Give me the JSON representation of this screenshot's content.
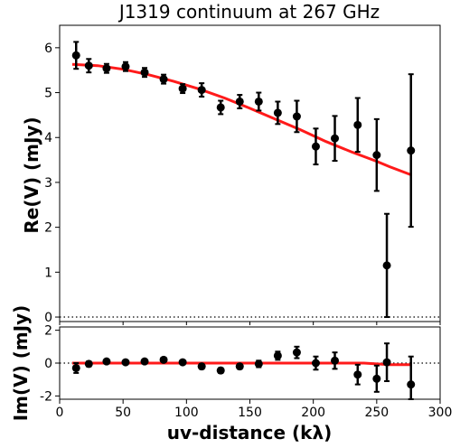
{
  "chart_data": {
    "title": "J1319 continuum at 267 GHz",
    "xlabel": "uv-distance (kλ)",
    "xlim": [
      0,
      300
    ],
    "x_ticks": [
      0,
      50,
      100,
      150,
      200,
      250,
      300
    ],
    "panels": [
      {
        "id": "real",
        "type": "scatter",
        "ylabel": "Re(V) (mJy)",
        "ylim": [
          -0.1,
          6.5
        ],
        "y_ticks": [
          0,
          1,
          2,
          3,
          4,
          5,
          6
        ],
        "zero_line": true,
        "points": [
          {
            "x": 13,
            "y": 5.83,
            "err": 0.3
          },
          {
            "x": 23,
            "y": 5.6,
            "err": 0.15
          },
          {
            "x": 37,
            "y": 5.54,
            "err": 0.1
          },
          {
            "x": 52,
            "y": 5.58,
            "err": 0.1
          },
          {
            "x": 67,
            "y": 5.45,
            "err": 0.1
          },
          {
            "x": 82,
            "y": 5.3,
            "err": 0.1
          },
          {
            "x": 97,
            "y": 5.09,
            "err": 0.1
          },
          {
            "x": 112,
            "y": 5.06,
            "err": 0.15
          },
          {
            "x": 127,
            "y": 4.67,
            "err": 0.15
          },
          {
            "x": 142,
            "y": 4.8,
            "err": 0.15
          },
          {
            "x": 157,
            "y": 4.8,
            "err": 0.2
          },
          {
            "x": 172,
            "y": 4.55,
            "err": 0.25
          },
          {
            "x": 187,
            "y": 4.47,
            "err": 0.35
          },
          {
            "x": 202,
            "y": 3.8,
            "err": 0.4
          },
          {
            "x": 217,
            "y": 3.98,
            "err": 0.5
          },
          {
            "x": 235,
            "y": 4.28,
            "err": 0.6
          },
          {
            "x": 250,
            "y": 3.61,
            "err": 0.8
          },
          {
            "x": 258,
            "y": 1.15,
            "err": 1.15
          },
          {
            "x": 277,
            "y": 3.71,
            "err": 1.7
          }
        ],
        "model": {
          "x": [
            10,
            30,
            50,
            70,
            90,
            110,
            130,
            150,
            170,
            190,
            210,
            230,
            250,
            260,
            277
          ],
          "y": [
            5.63,
            5.6,
            5.52,
            5.4,
            5.25,
            5.08,
            4.88,
            4.65,
            4.41,
            4.17,
            3.91,
            3.68,
            3.47,
            3.35,
            3.17
          ]
        }
      },
      {
        "id": "imag",
        "type": "scatter",
        "ylabel": "Im(V) (mJy)",
        "ylim": [
          -2.2,
          2.2
        ],
        "y_ticks": [
          -2,
          0,
          2
        ],
        "zero_line": true,
        "points": [
          {
            "x": 13,
            "y": -0.3,
            "err": 0.3
          },
          {
            "x": 23,
            "y": -0.05,
            "err": 0.15
          },
          {
            "x": 37,
            "y": 0.1,
            "err": 0.1
          },
          {
            "x": 52,
            "y": 0.05,
            "err": 0.1
          },
          {
            "x": 67,
            "y": 0.1,
            "err": 0.1
          },
          {
            "x": 82,
            "y": 0.2,
            "err": 0.1
          },
          {
            "x": 97,
            "y": 0.05,
            "err": 0.1
          },
          {
            "x": 112,
            "y": -0.2,
            "err": 0.15
          },
          {
            "x": 127,
            "y": -0.45,
            "err": 0.15
          },
          {
            "x": 142,
            "y": -0.2,
            "err": 0.15
          },
          {
            "x": 157,
            "y": -0.05,
            "err": 0.2
          },
          {
            "x": 172,
            "y": 0.45,
            "err": 0.25
          },
          {
            "x": 187,
            "y": 0.65,
            "err": 0.35
          },
          {
            "x": 202,
            "y": 0.0,
            "err": 0.4
          },
          {
            "x": 217,
            "y": 0.15,
            "err": 0.5
          },
          {
            "x": 235,
            "y": -0.7,
            "err": 0.6
          },
          {
            "x": 250,
            "y": -0.95,
            "err": 0.8
          },
          {
            "x": 258,
            "y": 0.05,
            "err": 1.15
          },
          {
            "x": 277,
            "y": -1.3,
            "err": 1.7
          }
        ],
        "model": {
          "x": [
            10,
            50,
            100,
            150,
            200,
            240,
            260,
            277
          ],
          "y": [
            0.0,
            0.0,
            0.0,
            0.0,
            0.0,
            0.0,
            -0.1,
            -0.1
          ]
        }
      }
    ],
    "colors": {
      "points": "#000000",
      "model": "#ff1a1a",
      "zero_line": "#000000"
    }
  }
}
